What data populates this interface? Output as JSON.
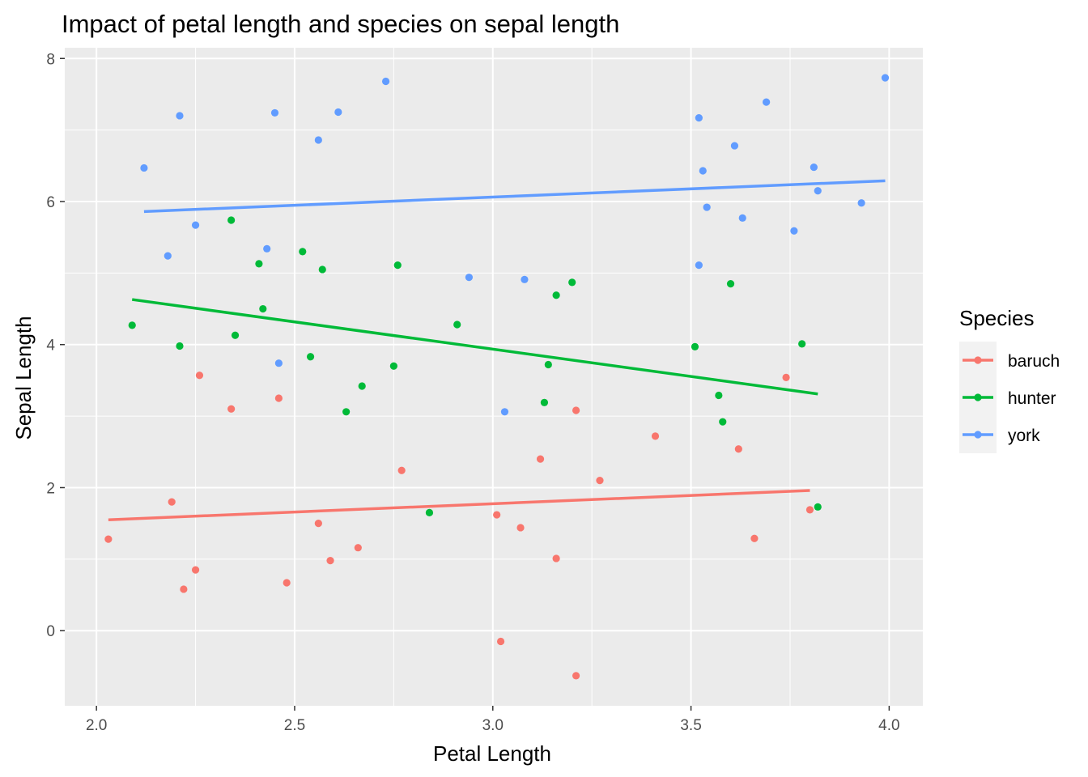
{
  "chart_data": {
    "type": "scatter",
    "title": "Impact of petal length and species on sepal length",
    "xlabel": "Petal Length",
    "ylabel": "Sepal Length",
    "xlim": [
      1.92,
      4.085
    ],
    "ylim": [
      -1.05,
      8.15
    ],
    "x_ticks": [
      {
        "value": 2.0,
        "label": "2.0"
      },
      {
        "value": 2.5,
        "label": "2.5"
      },
      {
        "value": 3.0,
        "label": "3.0"
      },
      {
        "value": 3.5,
        "label": "3.5"
      },
      {
        "value": 4.0,
        "label": "4.0"
      }
    ],
    "y_ticks": [
      {
        "value": 0,
        "label": "0"
      },
      {
        "value": 2,
        "label": "2"
      },
      {
        "value": 4,
        "label": "4"
      },
      {
        "value": 6,
        "label": "6"
      },
      {
        "value": 8,
        "label": "8"
      }
    ],
    "grid": true,
    "background": "#EBEBEB",
    "legend": {
      "title": "Species",
      "position": "right"
    },
    "series": [
      {
        "name": "baruch",
        "color": "#F8766D",
        "points": [
          [
            2.03,
            1.28
          ],
          [
            2.19,
            1.8
          ],
          [
            2.22,
            0.58
          ],
          [
            2.25,
            0.85
          ],
          [
            2.26,
            3.57
          ],
          [
            2.34,
            3.1
          ],
          [
            2.46,
            3.25
          ],
          [
            2.48,
            0.67
          ],
          [
            2.56,
            1.5
          ],
          [
            2.59,
            0.98
          ],
          [
            2.66,
            1.16
          ],
          [
            2.77,
            2.24
          ],
          [
            3.01,
            1.62
          ],
          [
            3.02,
            -0.15
          ],
          [
            3.07,
            1.44
          ],
          [
            3.12,
            2.4
          ],
          [
            3.16,
            1.01
          ],
          [
            3.21,
            3.08
          ],
          [
            3.21,
            -0.63
          ],
          [
            3.27,
            2.1
          ],
          [
            3.41,
            2.72
          ],
          [
            3.62,
            2.54
          ],
          [
            3.66,
            1.29
          ],
          [
            3.74,
            3.54
          ],
          [
            3.8,
            1.69
          ]
        ],
        "trend": [
          [
            2.03,
            1.55
          ],
          [
            3.8,
            1.96
          ]
        ]
      },
      {
        "name": "hunter",
        "color": "#00BA38",
        "points": [
          [
            2.09,
            4.27
          ],
          [
            2.21,
            3.98
          ],
          [
            2.34,
            5.74
          ],
          [
            2.35,
            4.13
          ],
          [
            2.41,
            5.13
          ],
          [
            2.42,
            4.5
          ],
          [
            2.52,
            5.3
          ],
          [
            2.54,
            3.83
          ],
          [
            2.57,
            5.05
          ],
          [
            2.63,
            3.06
          ],
          [
            2.67,
            3.42
          ],
          [
            2.75,
            3.7
          ],
          [
            2.76,
            5.11
          ],
          [
            2.84,
            1.65
          ],
          [
            2.91,
            4.28
          ],
          [
            3.13,
            3.19
          ],
          [
            3.14,
            3.72
          ],
          [
            3.16,
            4.69
          ],
          [
            3.2,
            4.87
          ],
          [
            3.51,
            3.97
          ],
          [
            3.57,
            3.29
          ],
          [
            3.58,
            2.92
          ],
          [
            3.6,
            4.85
          ],
          [
            3.78,
            4.01
          ],
          [
            3.82,
            1.73
          ]
        ],
        "trend": [
          [
            2.09,
            4.63
          ],
          [
            3.82,
            3.31
          ]
        ]
      },
      {
        "name": "york",
        "color": "#619CFF",
        "points": [
          [
            2.12,
            6.47
          ],
          [
            2.18,
            5.24
          ],
          [
            2.21,
            7.2
          ],
          [
            2.25,
            5.67
          ],
          [
            2.43,
            5.34
          ],
          [
            2.45,
            7.24
          ],
          [
            2.46,
            3.74
          ],
          [
            2.56,
            6.86
          ],
          [
            2.61,
            7.25
          ],
          [
            2.73,
            7.68
          ],
          [
            2.94,
            4.94
          ],
          [
            3.03,
            3.06
          ],
          [
            3.08,
            4.91
          ],
          [
            3.52,
            7.17
          ],
          [
            3.52,
            5.11
          ],
          [
            3.53,
            6.43
          ],
          [
            3.54,
            5.92
          ],
          [
            3.61,
            6.78
          ],
          [
            3.63,
            5.77
          ],
          [
            3.69,
            7.39
          ],
          [
            3.76,
            5.59
          ],
          [
            3.81,
            6.48
          ],
          [
            3.82,
            6.15
          ],
          [
            3.93,
            5.98
          ],
          [
            3.99,
            7.73
          ]
        ],
        "trend": [
          [
            2.12,
            5.86
          ],
          [
            3.99,
            6.29
          ]
        ]
      }
    ]
  }
}
